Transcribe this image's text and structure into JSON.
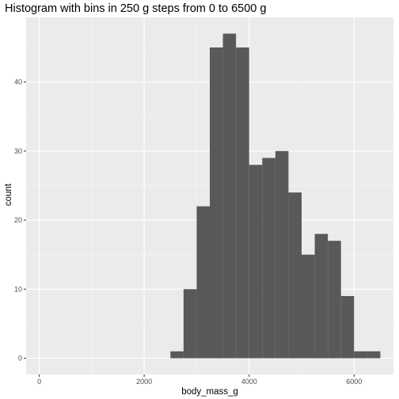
{
  "chart_data": {
    "type": "bar",
    "title": "Histogram with bins in 250 g steps from 0 to 6500 g",
    "xlabel": "body_mass_g",
    "ylabel": "count",
    "xlim": [
      -250,
      6750
    ],
    "ylim": [
      -2.35,
      49.35
    ],
    "x_ticks": [
      0,
      2000,
      4000,
      6000
    ],
    "y_ticks": [
      0,
      10,
      20,
      30,
      40
    ],
    "grid": true,
    "legend": "none",
    "bin_width": 250,
    "bins_start": [
      2500,
      2750,
      3000,
      3250,
      3500,
      3750,
      4000,
      4250,
      4500,
      4750,
      5000,
      5250,
      5500,
      5750,
      6000,
      6250
    ],
    "values": [
      1,
      10,
      22,
      45,
      47,
      45,
      28,
      29,
      30,
      24,
      15,
      18,
      17,
      9,
      1,
      1
    ],
    "colors": {
      "bar": "#595959",
      "panel": "#ebebeb",
      "grid_major": "#ffffff",
      "grid_minor": "#f5f5f5",
      "tick": "#333333"
    }
  }
}
